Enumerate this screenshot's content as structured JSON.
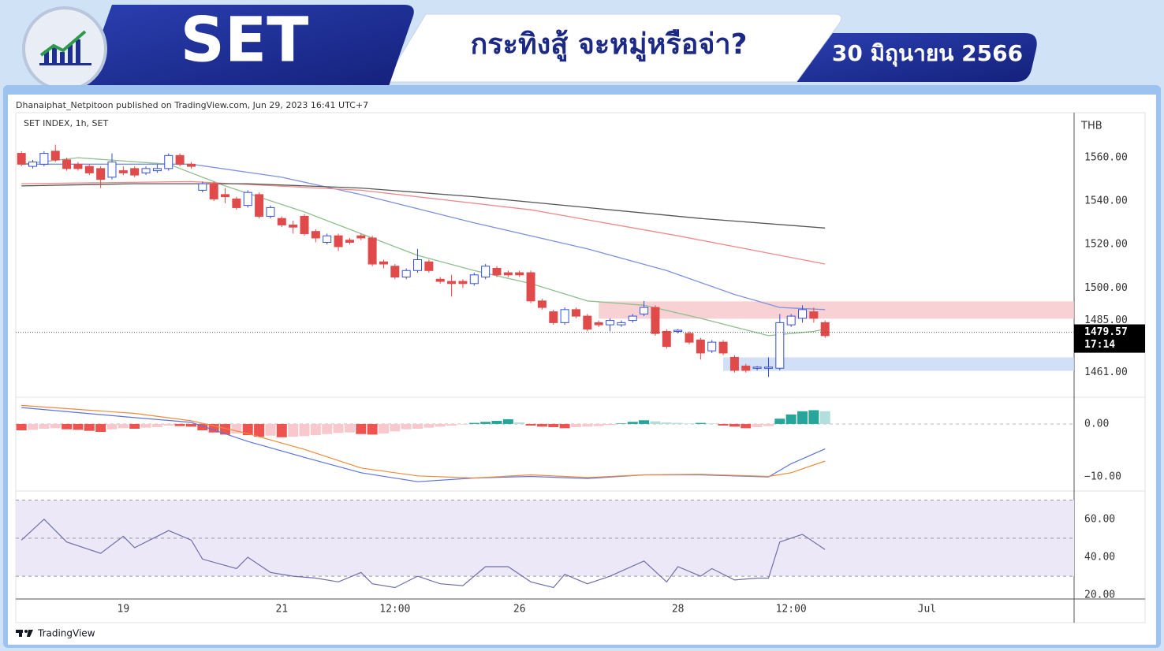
{
  "header": {
    "title": "SET",
    "headline": "กระทิงสู้ จะหมู่หรือจ่า?",
    "date": "30 มิถุนายน 2566"
  },
  "attribution": "Dhanaiphat_Netpitoon published on TradingView.com, Jun 29, 2023 16:41 UTC+7",
  "brand": "TradingView",
  "chart_data": [
    {
      "type": "candlestick",
      "title": "SET INDEX, 1h, SET",
      "currency": "THB",
      "xlim": [
        -0.5,
        93
      ],
      "xticks": [
        {
          "value": 9,
          "label": "19"
        },
        {
          "value": 23,
          "label": "21"
        },
        {
          "value": 33,
          "label": "12:00"
        },
        {
          "value": 44,
          "label": "26"
        },
        {
          "value": 58,
          "label": "28"
        },
        {
          "value": 68,
          "label": "12:00"
        },
        {
          "value": 80,
          "label": "Jul"
        }
      ],
      "ylim": [
        1450,
        1580
      ],
      "yticks": [
        {
          "value": 1461,
          "label": "1461.00"
        },
        {
          "value": 1485,
          "label": "1485.00"
        },
        {
          "value": 1500,
          "label": "1500.00"
        },
        {
          "value": 1520,
          "label": "1520.00"
        },
        {
          "value": 1540,
          "label": "1540.00"
        },
        {
          "value": 1560,
          "label": "1560.00"
        }
      ],
      "up_color": "#3550d8",
      "down_color": "#e04a4a",
      "open": [
        1562,
        1556,
        1557,
        1563,
        1559,
        1557,
        1556,
        1555,
        1551,
        1554,
        1555,
        1553,
        1554,
        1555,
        1561,
        1557,
        1545,
        1548,
        1543,
        1541,
        1538,
        1543,
        1533,
        1532,
        1529,
        1533,
        1526,
        1521,
        1524,
        1522,
        1524,
        1523,
        1512,
        1510,
        1505,
        1508,
        1512,
        1504,
        1503,
        1503,
        1502,
        1505,
        1509,
        1507,
        1507,
        1507,
        1494,
        1489,
        1484,
        1490,
        1487,
        1484,
        1483,
        1483,
        1485,
        1488,
        1491,
        1480,
        1480,
        1479,
        1476,
        1471,
        1475,
        1468,
        1464,
        1463,
        1463,
        1463,
        1483,
        1486,
        1489,
        1484
      ],
      "high": [
        1563,
        1559,
        1563,
        1566,
        1560,
        1558,
        1557,
        1556,
        1562,
        1556,
        1556,
        1556,
        1557,
        1562,
        1562,
        1558,
        1549,
        1549,
        1546,
        1542,
        1545,
        1544,
        1538,
        1533,
        1531,
        1534,
        1527,
        1525,
        1525,
        1523,
        1525,
        1524,
        1513,
        1511,
        1509,
        1518,
        1513,
        1505,
        1506,
        1504,
        1507,
        1511,
        1510,
        1508,
        1508,
        1508,
        1495,
        1490,
        1491,
        1491,
        1488,
        1485,
        1486,
        1485,
        1488,
        1494,
        1492,
        1481,
        1481,
        1480,
        1477,
        1476,
        1476,
        1469,
        1465,
        1464,
        1468,
        1488,
        1488,
        1492,
        1491,
        1485
      ],
      "low": [
        1556,
        1555,
        1556,
        1558,
        1554,
        1554,
        1552,
        1546,
        1550,
        1552,
        1551,
        1552,
        1553,
        1554,
        1556,
        1555,
        1544,
        1540,
        1539,
        1536,
        1537,
        1532,
        1532,
        1528,
        1525,
        1524,
        1521,
        1520,
        1517,
        1520,
        1522,
        1510,
        1509,
        1504,
        1504,
        1507,
        1507,
        1502,
        1496,
        1500,
        1501,
        1504,
        1505,
        1505,
        1505,
        1493,
        1490,
        1483,
        1483,
        1486,
        1480,
        1482,
        1480,
        1482,
        1484,
        1487,
        1478,
        1472,
        1479,
        1474,
        1467,
        1470,
        1469,
        1461,
        1461,
        1462,
        1459,
        1462,
        1482,
        1484,
        1484,
        1477
      ],
      "close": [
        1557,
        1558,
        1562,
        1559,
        1555,
        1555,
        1553,
        1550,
        1558,
        1553,
        1552,
        1555,
        1555,
        1561,
        1557,
        1556,
        1548,
        1541,
        1542,
        1537,
        1544,
        1533,
        1537,
        1529,
        1528,
        1525,
        1523,
        1524,
        1519,
        1521,
        1523,
        1511,
        1511,
        1505,
        1508,
        1513,
        1508,
        1503,
        1502,
        1502,
        1506,
        1510,
        1506,
        1506,
        1506,
        1494,
        1491,
        1484,
        1490,
        1487,
        1481,
        1483,
        1485,
        1484,
        1487,
        1491,
        1479,
        1473,
        1480.5,
        1475,
        1470,
        1475,
        1470,
        1462,
        1462,
        1463.5,
        1463.5,
        1484,
        1487,
        1490,
        1486,
        1478
      ],
      "lines": [
        {
          "color": "#8fbf8f",
          "x": [
            0,
            5,
            13,
            18,
            25,
            30,
            35,
            40,
            45,
            50,
            55,
            60,
            66,
            70,
            71
          ],
          "values": [
            1557,
            1560,
            1557,
            1547,
            1535,
            1525,
            1515,
            1508,
            1502,
            1494,
            1492,
            1486,
            1478,
            1480,
            1481
          ]
        },
        {
          "color": "#7f92e0",
          "x": [
            0,
            15,
            23,
            30,
            40,
            50,
            57,
            63,
            67,
            71
          ],
          "values": [
            1557,
            1557,
            1551,
            1543,
            1530,
            1518,
            1508,
            1497,
            1491,
            1490
          ]
        },
        {
          "color": "#ee8a8a",
          "x": [
            0,
            15,
            30,
            45,
            58,
            71
          ],
          "values": [
            1548,
            1549,
            1545,
            1536,
            1524,
            1511
          ]
        },
        {
          "color": "#555555",
          "x": [
            0,
            10,
            20,
            30,
            40,
            50,
            60,
            71
          ],
          "values": [
            1547,
            1548,
            1548,
            1546,
            1542,
            1537,
            1532,
            1527.6
          ]
        }
      ],
      "zones": [
        {
          "x": 51,
          "from": 1485.8,
          "to": 1493.8,
          "color": "#f6c9cd"
        },
        {
          "x": 62,
          "from": 1461.8,
          "to": 1468,
          "color": "#c9d9f6"
        }
      ],
      "last_price": {
        "value": 1479.57,
        "time": "17:14"
      }
    },
    {
      "type": "macd",
      "xlim": [
        -0.5,
        93
      ],
      "ylim": [
        -12.5,
        4.9
      ],
      "yticks": [
        {
          "value": 0,
          "label": "0.00"
        },
        {
          "value": -10,
          "label": "−10.00"
        }
      ],
      "histogram_colors": {
        "up_rising": "#26a69a",
        "up_falling": "#b2dfdb",
        "down_falling": "#ef5350",
        "down_rising": "#f8c8cc"
      },
      "histogram": [
        -1.2,
        -1.1,
        -0.9,
        -0.8,
        -1.0,
        -1.1,
        -1.3,
        -1.5,
        -1.0,
        -0.8,
        -0.9,
        -0.7,
        -0.6,
        -0.3,
        -0.4,
        -0.5,
        -1.2,
        -1.6,
        -2.0,
        -1.8,
        -2.1,
        -2.4,
        -2.2,
        -2.5,
        -2.4,
        -2.3,
        -2.1,
        -1.9,
        -1.7,
        -1.6,
        -1.9,
        -2.0,
        -1.8,
        -1.4,
        -1.0,
        -0.9,
        -0.7,
        -0.5,
        -0.3,
        -0.1,
        0.2,
        0.4,
        0.6,
        0.9,
        0.3,
        -0.3,
        -0.5,
        -0.6,
        -0.8,
        -0.6,
        -0.5,
        -0.4,
        -0.2,
        0.1,
        0.4,
        0.7,
        0.5,
        0.3,
        0.2,
        0.1,
        0.2,
        0.1,
        -0.3,
        -0.5,
        -0.8,
        -0.6,
        -0.4,
        1.0,
        1.8,
        2.4,
        2.6,
        2.4
      ],
      "lines": [
        {
          "color": "#5b74e0",
          "x": [
            0,
            10,
            15,
            20,
            25,
            30,
            35,
            40,
            45,
            50,
            55,
            60,
            66,
            68,
            71
          ],
          "values": [
            3.1,
            1.2,
            0.3,
            -3.3,
            -6.3,
            -9.2,
            -10.9,
            -10.2,
            -9.9,
            -10.3,
            -9.6,
            -9.6,
            -10.0,
            -7.5,
            -4.7
          ]
        },
        {
          "color": "#f08a3c",
          "x": [
            0,
            10,
            15,
            20,
            25,
            30,
            35,
            40,
            45,
            50,
            55,
            60,
            66,
            68,
            71
          ],
          "values": [
            3.5,
            2.0,
            0.6,
            -1.8,
            -4.8,
            -8.3,
            -9.8,
            -10.2,
            -9.6,
            -10.1,
            -9.6,
            -9.5,
            -9.9,
            -9.2,
            -7.0
          ]
        }
      ]
    },
    {
      "type": "rsi",
      "xlim": [
        -0.5,
        93
      ],
      "ylim": [
        18,
        74
      ],
      "yticks": [
        {
          "value": 20,
          "label": "20.00"
        },
        {
          "value": 40,
          "label": "40.00"
        },
        {
          "value": 60,
          "label": "60.00"
        }
      ],
      "bands": [
        30,
        50,
        70
      ],
      "band_color": "#ece8f7",
      "color": "#6f6fa8",
      "x": [
        0,
        2,
        4,
        7,
        9,
        10,
        13,
        15,
        16,
        19,
        20,
        22,
        24,
        26,
        28,
        30,
        31,
        33,
        35,
        37,
        39,
        41,
        43,
        45,
        47,
        48,
        50,
        52,
        55,
        57,
        58,
        60,
        61,
        63,
        65,
        66,
        67,
        69,
        71
      ],
      "values": [
        49,
        60,
        48,
        42,
        51,
        45,
        54,
        49,
        39,
        34,
        40,
        32,
        30,
        29,
        27,
        32,
        26,
        24,
        30,
        26,
        25,
        35,
        35,
        27,
        24,
        31,
        26,
        30,
        38,
        27,
        35,
        30,
        34,
        28,
        29,
        29,
        48,
        52,
        44
      ]
    }
  ]
}
